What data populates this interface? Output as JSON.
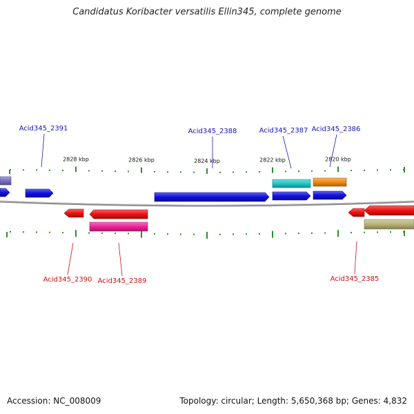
{
  "title": "Candidatus Koribacter versatilis Ellin345, complete genome",
  "footer": {
    "accession": "Accession: NC_008009",
    "summary": "Topology: circular; Length: 5,650,368 bp; Genes: 4,832"
  },
  "colors": {
    "backbone": "#8a8a8a",
    "tick": "#2e8b2e",
    "label_forward": "#1515b0",
    "label_reverse": "#cc1010"
  },
  "ticks": [
    {
      "label": "2828 kbp"
    },
    {
      "label": "2826 kbp"
    },
    {
      "label": "2824 kbp"
    },
    {
      "label": "2822 kbp"
    },
    {
      "label": "2820 kbp"
    }
  ],
  "genes": [
    {
      "label": "",
      "color": "#7a70c8",
      "strand": "+"
    },
    {
      "label": "",
      "color": "#1010dd",
      "strand": "+"
    },
    {
      "label": "Acid345_2391",
      "color": "#1010dd",
      "strand": "+"
    },
    {
      "label": "Acid345_2388",
      "color": "#1010dd",
      "strand": "+"
    },
    {
      "label": "Acid345_2387",
      "color": "#1010dd",
      "strand": "+"
    },
    {
      "label": "",
      "color": "#20c8c8",
      "strand": "+"
    },
    {
      "label": "Acid345_2386",
      "color": "#1010dd",
      "strand": "+"
    },
    {
      "label": "",
      "color": "#f08a10",
      "strand": "+"
    },
    {
      "label": "Acid345_2390",
      "color": "#ee1010",
      "strand": "-"
    },
    {
      "label": "",
      "color": "#ee1010",
      "strand": "-"
    },
    {
      "label": "Acid345_2389",
      "color": "#ee2299",
      "strand": "-"
    },
    {
      "label": "Acid345_2385",
      "color": "#ee1010",
      "strand": "-"
    },
    {
      "label": "",
      "color": "#ee1010",
      "strand": "-"
    },
    {
      "label": "",
      "color": "#b8b478",
      "strand": "-"
    }
  ]
}
